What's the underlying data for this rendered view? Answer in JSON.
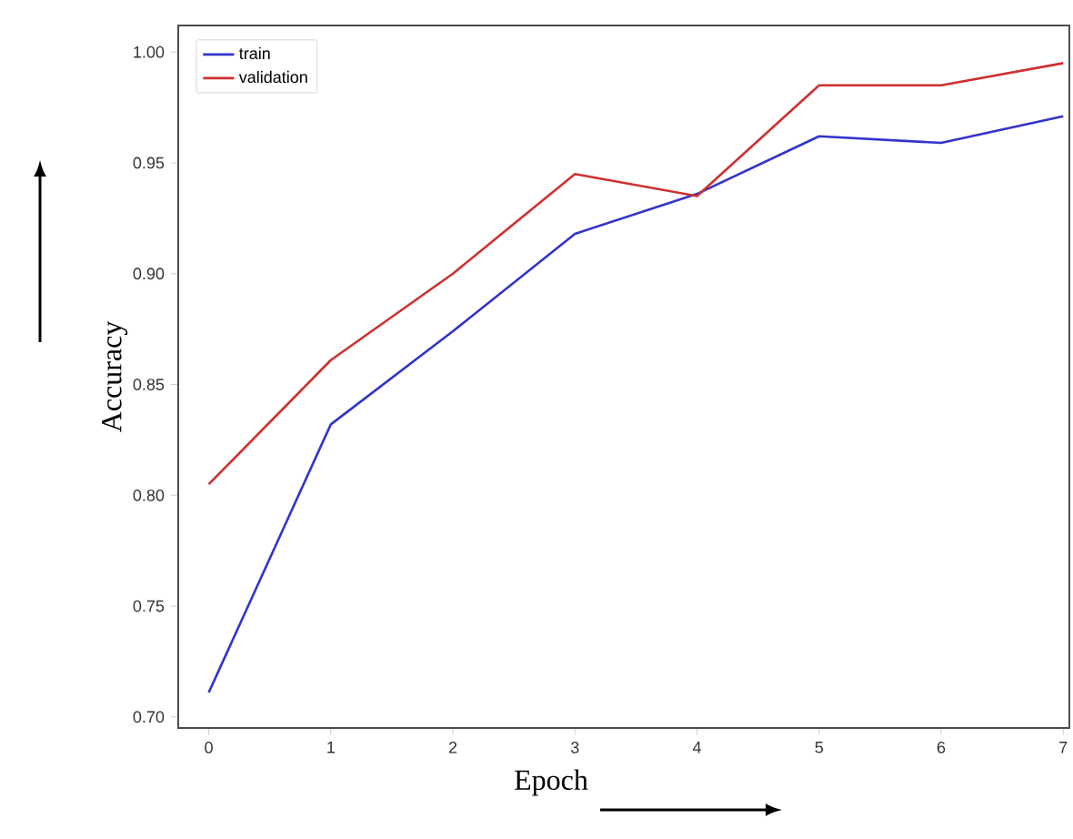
{
  "chart_data": {
    "type": "line",
    "xlabel": "Epoch",
    "ylabel": "Accuracy",
    "x": [
      0,
      1,
      2,
      3,
      4,
      5,
      6,
      7
    ],
    "series": [
      {
        "name": "train",
        "color": "#3333cc",
        "values": [
          0.711,
          0.832,
          0.874,
          0.918,
          0.936,
          0.962,
          0.959,
          0.971
        ]
      },
      {
        "name": "validation",
        "color": "#d03030",
        "values": [
          0.805,
          0.861,
          0.9,
          0.945,
          0.935,
          0.985,
          0.985,
          0.995
        ]
      }
    ],
    "xlim": [
      -0.25,
      7.05
    ],
    "ylim": [
      0.695,
      1.012
    ],
    "xticks": [
      0,
      1,
      2,
      3,
      4,
      5,
      6,
      7
    ],
    "yticks": [
      {
        "value": 0.7,
        "label": "0.70"
      },
      {
        "value": 0.75,
        "label": "0.75"
      },
      {
        "value": 0.8,
        "label": "0.80"
      },
      {
        "value": 0.85,
        "label": "0.85"
      },
      {
        "value": 0.9,
        "label": "0.90"
      },
      {
        "value": 0.95,
        "label": "0.95"
      },
      {
        "value": 1.0,
        "label": "1.00"
      }
    ],
    "legend": "top left",
    "grid": false,
    "marker": "none",
    "line_style": "solid"
  }
}
